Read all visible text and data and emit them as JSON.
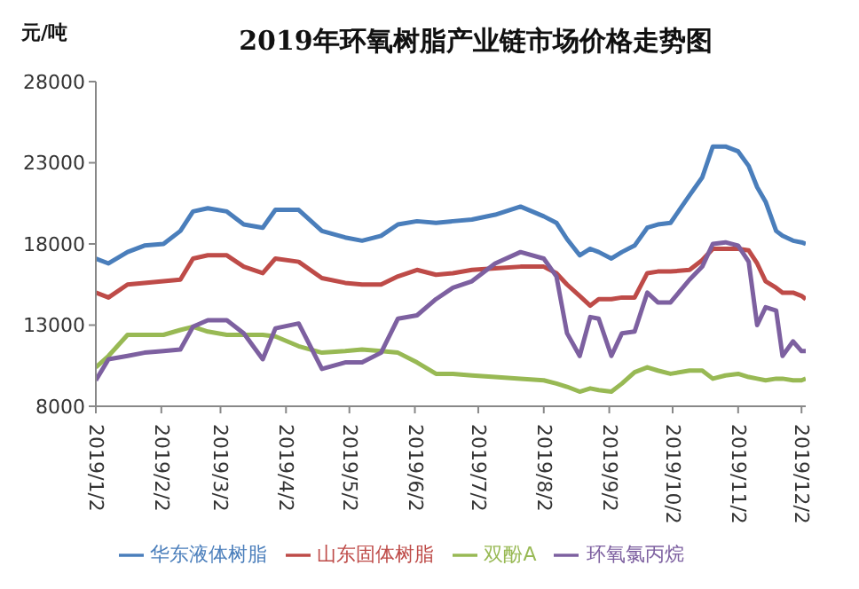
{
  "chart_data": {
    "type": "line",
    "title": "2019年环氧树脂产业链市场价格走势图",
    "ylabel": "元/吨",
    "x": [
      "2019-01-02",
      "2019-01-08",
      "2019-01-17",
      "2019-01-25",
      "2019-02-03",
      "2019-02-11",
      "2019-02-17",
      "2019-02-24",
      "2019-03-05",
      "2019-03-13",
      "2019-03-22",
      "2019-03-28",
      "2019-04-08",
      "2019-04-19",
      "2019-04-30",
      "2019-05-08",
      "2019-05-17",
      "2019-05-25",
      "2019-06-03",
      "2019-06-12",
      "2019-06-20",
      "2019-06-29",
      "2019-07-10",
      "2019-07-22",
      "2019-08-02",
      "2019-08-08",
      "2019-08-13",
      "2019-08-19",
      "2019-08-24",
      "2019-08-28",
      "2019-09-03",
      "2019-09-08",
      "2019-09-14",
      "2019-09-20",
      "2019-09-25",
      "2019-10-01",
      "2019-10-10",
      "2019-10-16",
      "2019-10-21",
      "2019-10-27",
      "2019-11-02",
      "2019-11-07",
      "2019-11-11",
      "2019-11-15",
      "2019-11-20",
      "2019-11-23",
      "2019-11-28",
      "2019-12-02",
      "2019-12-04"
    ],
    "series": [
      {
        "name": "华东液体树脂",
        "color": "#4a7ebb",
        "values": [
          17100,
          16800,
          17500,
          17900,
          18000,
          18800,
          20000,
          20200,
          20000,
          19200,
          19000,
          20100,
          20100,
          18800,
          18400,
          18200,
          18500,
          19200,
          19400,
          19300,
          19400,
          19500,
          19800,
          20300,
          19700,
          19300,
          18300,
          17300,
          17700,
          17500,
          17100,
          17500,
          17900,
          19000,
          19200,
          19300,
          21000,
          22100,
          24000,
          24000,
          23700,
          22800,
          21500,
          20600,
          18800,
          18500,
          18200,
          18100,
          18000
        ]
      },
      {
        "name": "山东固体树脂",
        "color": "#be4b48",
        "values": [
          15000,
          14700,
          15500,
          15600,
          15700,
          15800,
          17100,
          17300,
          17300,
          16600,
          16200,
          17100,
          16900,
          15900,
          15600,
          15500,
          15500,
          16000,
          16400,
          16100,
          16200,
          16400,
          16500,
          16600,
          16600,
          16200,
          15500,
          14800,
          14200,
          14600,
          14600,
          14700,
          14700,
          16200,
          16300,
          16300,
          16400,
          17000,
          17700,
          17700,
          17700,
          17600,
          16800,
          15700,
          15300,
          15000,
          15000,
          14800,
          14600
        ]
      },
      {
        "name": "双酚A",
        "color": "#98b954",
        "values": [
          10400,
          11100,
          12400,
          12400,
          12400,
          12700,
          12900,
          12600,
          12400,
          12400,
          12400,
          12300,
          11700,
          11300,
          11400,
          11500,
          11400,
          11300,
          10700,
          10000,
          10000,
          9900,
          9800,
          9700,
          9600,
          9400,
          9200,
          8900,
          9100,
          9000,
          8900,
          9400,
          10100,
          10400,
          10200,
          10000,
          10200,
          10200,
          9700,
          9900,
          10000,
          9800,
          9700,
          9600,
          9700,
          9700,
          9600,
          9600,
          9700
        ]
      },
      {
        "name": "环氧氯丙烷",
        "color": "#7d60a0",
        "values": [
          9600,
          10900,
          11100,
          11300,
          11400,
          11500,
          12900,
          13300,
          13300,
          12500,
          10900,
          12800,
          13100,
          10300,
          10700,
          10700,
          11300,
          13400,
          13600,
          14600,
          15300,
          15700,
          16800,
          17500,
          17100,
          16000,
          12500,
          11100,
          13500,
          13400,
          11100,
          12500,
          12600,
          15000,
          14400,
          14400,
          15800,
          16600,
          18000,
          18100,
          17900,
          16900,
          13000,
          14100,
          13900,
          11100,
          12000,
          11400,
          11400
        ]
      }
    ],
    "xlim": [
      "2019-01-02",
      "2019-12-04"
    ],
    "xticks": [
      {
        "value": "2019-01-02",
        "label": "2019/1/2"
      },
      {
        "value": "2019-02-02",
        "label": "2019/2/2"
      },
      {
        "value": "2019-03-02",
        "label": "2019/3/2"
      },
      {
        "value": "2019-04-02",
        "label": "2019/4/2"
      },
      {
        "value": "2019-05-02",
        "label": "2019/5/2"
      },
      {
        "value": "2019-06-02",
        "label": "2019/6/2"
      },
      {
        "value": "2019-07-02",
        "label": "2019/7/2"
      },
      {
        "value": "2019-08-02",
        "label": "2019/8/2"
      },
      {
        "value": "2019-09-02",
        "label": "2019/9/2"
      },
      {
        "value": "2019-10-02",
        "label": "2019/10/2"
      },
      {
        "value": "2019-11-02",
        "label": "2019/11/2"
      },
      {
        "value": "2019-12-02",
        "label": "2019/12/2"
      }
    ],
    "ylim": [
      8000,
      28000
    ],
    "yticks": [
      8000,
      13000,
      18000,
      23000,
      28000
    ],
    "legend": "bottom",
    "marker": "none",
    "line_style": "solid"
  }
}
